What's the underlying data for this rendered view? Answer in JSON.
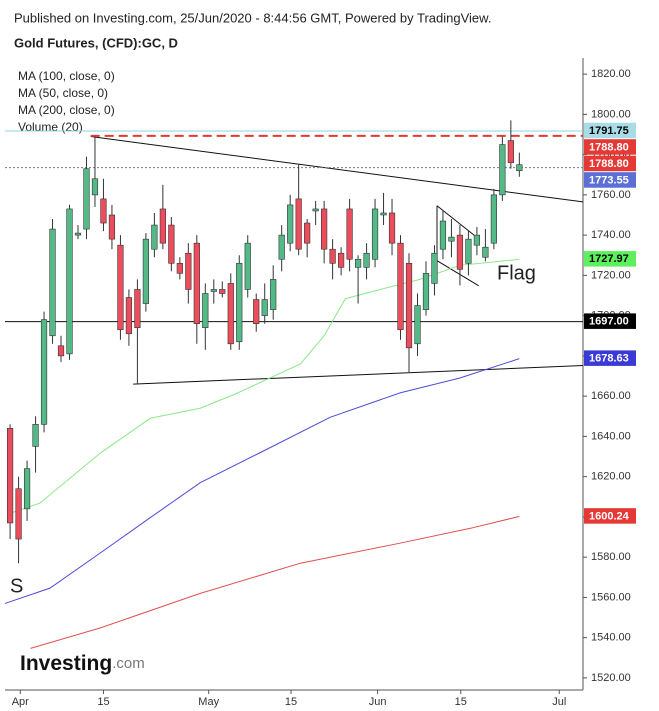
{
  "chart_data": {
    "type": "candlestick",
    "header": "Published on Investing.com, 25/Jun/2020 - 8:44:56 GMT, Powered by TradingView.",
    "title": "Gold Futures, (CFD):GC, D",
    "volume_label": "Volume (20)",
    "up_color": "#53b987",
    "down_color": "#eb4d5c",
    "wick_color": "#333333",
    "xlim": [
      -0.6,
      67.5
    ],
    "xticks": [
      {
        "value": 1.2,
        "label": "Apr"
      },
      {
        "value": 11,
        "label": "15"
      },
      {
        "value": 23.4,
        "label": "May"
      },
      {
        "value": 33.1,
        "label": "15"
      },
      {
        "value": 43.3,
        "label": "Jun"
      },
      {
        "value": 53.1,
        "label": "15"
      },
      {
        "value": 64.7,
        "label": "Jul"
      }
    ],
    "ylim": [
      1514,
      1828
    ],
    "yticks": [
      {
        "value": 1520,
        "label": "1520.00"
      },
      {
        "value": 1540,
        "label": "1540.00"
      },
      {
        "value": 1560,
        "label": "1560.00"
      },
      {
        "value": 1580,
        "label": "1580.00"
      },
      {
        "value": 1600,
        "label": "1600.00"
      },
      {
        "value": 1620,
        "label": "1620.00"
      },
      {
        "value": 1640,
        "label": "1640.00"
      },
      {
        "value": 1660,
        "label": "1660.00"
      },
      {
        "value": 1680,
        "label": "1680.00"
      },
      {
        "value": 1700,
        "label": "1700.00"
      },
      {
        "value": 1720,
        "label": "1720.00"
      },
      {
        "value": 1740,
        "label": "1740.00"
      },
      {
        "value": 1760,
        "label": "1760.00"
      },
      {
        "value": 1780,
        "label": "1780.00"
      },
      {
        "value": 1800,
        "label": "1800.00"
      },
      {
        "value": 1820,
        "label": "1820.00"
      }
    ],
    "candles": {
      "x": [
        0,
        1,
        2,
        3,
        4,
        5,
        6,
        7,
        8,
        9,
        10,
        11,
        12,
        13,
        14,
        15,
        16,
        17,
        18,
        19,
        20,
        21,
        22,
        23,
        24,
        25,
        26,
        27,
        28,
        29,
        30,
        31,
        32,
        33,
        34,
        35,
        36,
        37,
        38,
        39,
        40,
        41,
        42,
        43,
        44,
        45,
        46,
        47,
        48,
        49,
        50,
        51,
        52,
        53,
        54,
        55,
        56,
        57,
        58,
        59,
        60
      ],
      "open": [
        1644,
        1614,
        1604,
        1635,
        1646,
        1690,
        1685,
        1681,
        1740,
        1743,
        1760,
        1758,
        1750,
        1735,
        1709,
        1713,
        1706,
        1733,
        1753,
        1745,
        1726,
        1731,
        1736,
        1694,
        1712,
        1713,
        1716,
        1687,
        1713,
        1708,
        1700,
        1703,
        1728,
        1736,
        1758,
        1746,
        1752,
        1753,
        1733,
        1731,
        1753,
        1724,
        1724,
        1728,
        1750,
        1751,
        1736,
        1726,
        1686,
        1703,
        1716,
        1733,
        1737,
        1740,
        1726,
        1735,
        1729,
        1736,
        1760,
        1787,
        1772
      ],
      "high": [
        1646,
        1620,
        1628,
        1650,
        1702,
        1748,
        1690,
        1755,
        1745,
        1779,
        1789,
        1768,
        1755,
        1740,
        1713,
        1718,
        1741,
        1751,
        1765,
        1749,
        1729,
        1736,
        1740,
        1716,
        1718,
        1717,
        1721,
        1730,
        1740,
        1711,
        1716,
        1725,
        1745,
        1760,
        1775,
        1748,
        1757,
        1757,
        1738,
        1734,
        1758,
        1730,
        1736,
        1758,
        1761,
        1758,
        1740,
        1731,
        1711,
        1727,
        1735,
        1752,
        1748,
        1745,
        1742,
        1744,
        1743,
        1763,
        1789,
        1797,
        1781
      ],
      "low": [
        1589,
        1577,
        1598,
        1622,
        1642,
        1686,
        1677,
        1678,
        1738,
        1738,
        1754,
        1742,
        1733,
        1688,
        1685,
        1666,
        1702,
        1729,
        1733,
        1722,
        1718,
        1706,
        1686,
        1683,
        1706,
        1709,
        1683,
        1683,
        1709,
        1692,
        1696,
        1698,
        1722,
        1732,
        1730,
        1729,
        1745,
        1726,
        1718,
        1720,
        1722,
        1706,
        1718,
        1724,
        1745,
        1730,
        1688,
        1672,
        1680,
        1700,
        1710,
        1728,
        1729,
        1715,
        1720,
        1730,
        1727,
        1733,
        1757,
        1773,
        1769
      ],
      "close": [
        1597,
        1589,
        1624,
        1646,
        1698,
        1743,
        1680,
        1753,
        1741,
        1773,
        1768,
        1746,
        1738,
        1693,
        1691,
        1694,
        1738,
        1745,
        1736,
        1726,
        1721,
        1713,
        1696,
        1711,
        1713,
        1711,
        1686,
        1726,
        1736,
        1696,
        1708,
        1718,
        1740,
        1755,
        1733,
        1736,
        1753,
        1733,
        1726,
        1724,
        1728,
        1728,
        1731,
        1753,
        1751,
        1736,
        1693,
        1684,
        1705,
        1721,
        1731,
        1747,
        1739,
        1723,
        1738,
        1740,
        1734,
        1760,
        1785,
        1776,
        1775
      ]
    },
    "series": [
      {
        "name": "MA (100, close, 0)",
        "color": "#4b4bd8",
        "x": [
          -0.6,
          4.7,
          10.6,
          16.5,
          22.4,
          29.5,
          37.7,
          46,
          53,
          60
        ],
        "values": [
          1557,
          1564.6,
          1582,
          1599.6,
          1617,
          1632,
          1649.5,
          1661.7,
          1669,
          1678.63
        ]
      },
      {
        "name": "MA (50, close, 0)",
        "color": "#8ae88a",
        "x": [
          0,
          3.5,
          10.6,
          16.5,
          22.4,
          26.5,
          34.2,
          37,
          39.5,
          43.6,
          48.3,
          53,
          57.8,
          60
        ],
        "values": [
          1601.8,
          1606.8,
          1631.6,
          1649,
          1654,
          1661,
          1676,
          1690,
          1708.4,
          1713,
          1718,
          1725,
          1727,
          1727.97
        ]
      },
      {
        "name": "MA (200, close, 0)",
        "color": "#e04f4f",
        "x": [
          2.4,
          10.6,
          22.4,
          34.2,
          46,
          54.3,
          60
        ],
        "values": [
          1534.7,
          1544.8,
          1562,
          1577,
          1587,
          1594.4,
          1600.24
        ]
      }
    ],
    "lines": [
      {
        "color": "#111111",
        "style": "solid",
        "x": [
          9.5,
          67.5
        ],
        "values": [
          1789,
          1756.5
        ]
      },
      {
        "color": "#111111",
        "style": "solid",
        "x": [
          14.5,
          67.5
        ],
        "values": [
          1666,
          1675.2
        ]
      },
      {
        "color": "#111111",
        "style": "solid",
        "x": [
          -0.6,
          67.5
        ],
        "values": [
          1697,
          1697
        ]
      },
      {
        "color": "#e53935",
        "style": "dashed",
        "x": [
          9.5,
          67.5
        ],
        "values": [
          1789.3,
          1789.3
        ]
      },
      {
        "color": "#8fd3e3",
        "style": "solid",
        "x": [
          -0.6,
          67.5
        ],
        "values": [
          1791.75,
          1791.75
        ]
      },
      {
        "color": "#777777",
        "style": "dotted",
        "x": [
          -0.6,
          67.5
        ],
        "values": [
          1773.55,
          1773.55
        ]
      },
      {
        "color": "#111111",
        "style": "solid",
        "x": [
          50.3,
          55.2
        ],
        "values": [
          1754.6,
          1738.2
        ]
      },
      {
        "color": "#111111",
        "style": "solid",
        "x": [
          50.3,
          55.2
        ],
        "values": [
          1727.3,
          1714.9
        ]
      },
      {
        "color": "#111111",
        "style": "solid",
        "x": [
          50.3,
          50.3
        ],
        "values": [
          1754.6,
          1727.3
        ]
      }
    ],
    "annotations": [
      "Flag",
      "S"
    ],
    "price_labels": [
      {
        "value": 1791.75,
        "label": "1791.75",
        "color": "#a8dce6",
        "text_color": "#000000"
      },
      {
        "value": 1788.8,
        "label": "1788.80",
        "color": "#e53935",
        "text_color": "#ffffff"
      },
      {
        "value": 1788.8,
        "label": "1788.80",
        "color": "#e53935",
        "text_color": "#ffffff"
      },
      {
        "value": 1773.55,
        "label": "1773.55",
        "color": "#5b6fd6",
        "text_color": "#ffffff"
      },
      {
        "value": 1727.97,
        "label": "1727.97",
        "color": "#5cf05c",
        "text_color": "#000000"
      },
      {
        "value": 1697,
        "label": "1697.00",
        "color": "#000000",
        "text_color": "#ffffff"
      },
      {
        "value": 1678.63,
        "label": "1678.63",
        "color": "#3a3ad6",
        "text_color": "#ffffff"
      },
      {
        "value": 1600.24,
        "label": "1600.24",
        "color": "#e53935",
        "text_color": "#ffffff"
      }
    ],
    "logo": {
      "name": "Investing",
      "suffix": ".com"
    }
  }
}
